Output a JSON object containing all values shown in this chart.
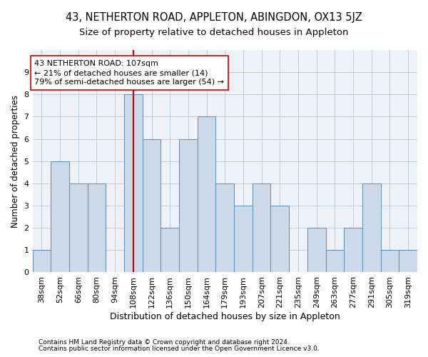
{
  "title1": "43, NETHERTON ROAD, APPLETON, ABINGDON, OX13 5JZ",
  "title2": "Size of property relative to detached houses in Appleton",
  "xlabel": "Distribution of detached houses by size in Appleton",
  "ylabel": "Number of detached properties",
  "categories": [
    "38sqm",
    "52sqm",
    "66sqm",
    "80sqm",
    "94sqm",
    "108sqm",
    "122sqm",
    "136sqm",
    "150sqm",
    "164sqm",
    "179sqm",
    "193sqm",
    "207sqm",
    "221sqm",
    "235sqm",
    "249sqm",
    "263sqm",
    "277sqm",
    "291sqm",
    "305sqm",
    "319sqm"
  ],
  "values": [
    1,
    5,
    4,
    4,
    0,
    8,
    6,
    2,
    6,
    7,
    4,
    3,
    4,
    3,
    0,
    2,
    1,
    2,
    4,
    1,
    1
  ],
  "highlight_index": 5,
  "bar_color": "#ccd9e8",
  "bar_edge_color": "#5b8db8",
  "highlight_line_color": "#cc0000",
  "annotation_line1": "43 NETHERTON ROAD: 107sqm",
  "annotation_line2": "← 21% of detached houses are smaller (14)",
  "annotation_line3": "79% of semi-detached houses are larger (54) →",
  "annotation_box_color": "#ffffff",
  "annotation_box_edge_color": "#cc0000",
  "ylim": [
    0,
    10
  ],
  "yticks": [
    0,
    1,
    2,
    3,
    4,
    5,
    6,
    7,
    8,
    9
  ],
  "footer1": "Contains HM Land Registry data © Crown copyright and database right 2024.",
  "footer2": "Contains public sector information licensed under the Open Government Licence v3.0.",
  "title1_fontsize": 10.5,
  "title2_fontsize": 9.5,
  "xlabel_fontsize": 9,
  "ylabel_fontsize": 8.5,
  "tick_fontsize": 8,
  "annotation_fontsize": 8,
  "footer_fontsize": 6.5,
  "bg_color": "#eef2f8",
  "grid_color": "#c0cfe0"
}
